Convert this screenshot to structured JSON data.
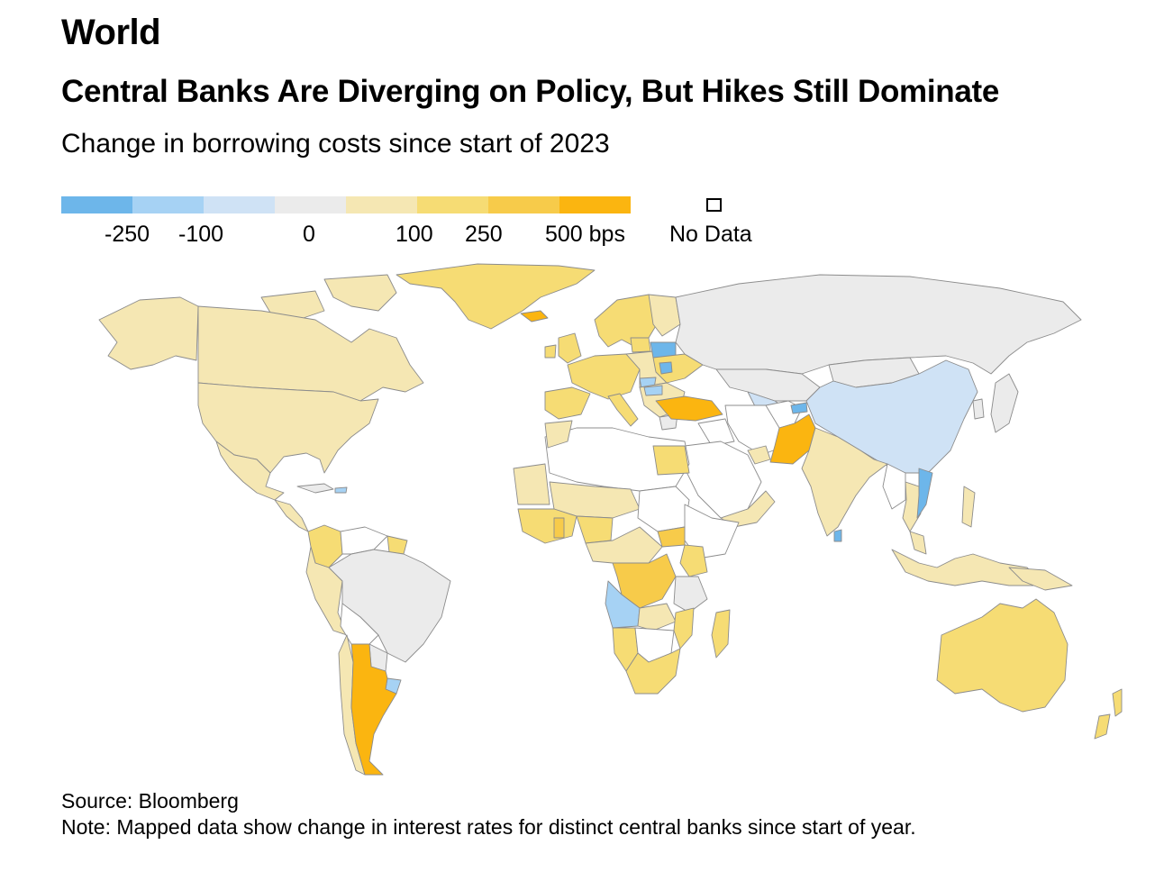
{
  "section_label": "World",
  "title": "Central Banks Are Diverging on Policy, But Hikes Still Dominate",
  "subtitle": "Change in borrowing costs since start of 2023",
  "legend": {
    "ticks": [
      "-250",
      "-100",
      "0",
      "100",
      "250",
      "500 bps"
    ],
    "no_data_label": "No Data",
    "colors": [
      "#6db6ea",
      "#a6d2f4",
      "#cfe2f5",
      "#ebebeb",
      "#f5e7b3",
      "#f6dc74",
      "#f7cb4a",
      "#fbb510"
    ]
  },
  "chart_data": {
    "type": "choropleth",
    "title": "Central Banks Are Diverging on Policy, But Hikes Still Dominate",
    "subtitle": "Change in borrowing costs since start of 2023",
    "unit": "bps",
    "legend_thresholds": [
      -250,
      -100,
      0,
      100,
      250,
      500
    ],
    "no_data_color": "#ffffff"
  },
  "source": "Source: Bloomberg",
  "note": "Note: Mapped data show change in interest rates for distinct central banks since start of year."
}
